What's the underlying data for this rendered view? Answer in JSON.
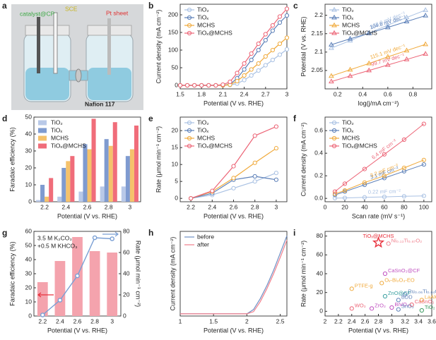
{
  "chart_data": [
    {
      "type": "image",
      "panel": "a",
      "labels": [
        "catalyst@CP",
        "SCE",
        "Pt sheet",
        "Nafion 117"
      ]
    },
    {
      "type": "line",
      "panel": "b",
      "xlabel": "Potential (V vs. RHE)",
      "ylabel": "Current density (mA cm⁻²)",
      "x": [
        1.5,
        1.6,
        1.7,
        1.8,
        1.9,
        2.0,
        2.1,
        2.2,
        2.3,
        2.4,
        2.5,
        2.6,
        2.7,
        2.8,
        2.9,
        3.0
      ],
      "xlim": [
        1.5,
        3
      ],
      "xticks": [
        1.5,
        1.8,
        2.1,
        2.4,
        2.7,
        3
      ],
      "ylim": [
        -10,
        230
      ],
      "yticks": [
        0,
        50,
        100,
        150,
        200
      ],
      "markers": true,
      "series": [
        {
          "name": "TiO₂",
          "color": "#a9c1e3",
          "values": [
            0,
            0,
            0,
            0,
            0,
            0,
            0,
            1,
            5,
            15,
            28,
            42,
            57,
            72,
            87,
            102
          ]
        },
        {
          "name": "TiOₓ",
          "color": "#5b7fb8",
          "values": [
            0,
            0,
            0,
            0,
            0,
            0,
            0,
            3,
            20,
            45,
            72,
            100,
            128,
            155,
            178,
            198
          ]
        },
        {
          "name": "MCHS",
          "color": "#f0aa3c",
          "values": [
            0,
            0,
            0,
            0,
            0,
            0,
            0,
            2,
            12,
            28,
            45,
            62,
            82,
            100,
            118,
            135
          ]
        },
        {
          "name": "TiOₓ@MCHS",
          "color": "#ec6476",
          "values": [
            0,
            0,
            0,
            0,
            0,
            0,
            2,
            10,
            35,
            62,
            90,
            118,
            145,
            170,
            195,
            217
          ]
        }
      ]
    },
    {
      "type": "scatter",
      "panel": "c",
      "xlabel": "log(j/mA cm⁻²)",
      "ylabel": "Potential (V vs. RHE)",
      "xlim": [
        0.1,
        0.95
      ],
      "xticks": [
        0.2,
        0.4,
        0.6,
        0.8
      ],
      "ylim": [
        2.0,
        2.23
      ],
      "yticks": [
        2.05,
        2.1,
        2.15,
        2.2
      ],
      "fit": true,
      "series": [
        {
          "name": "TiO₂",
          "color": "#a9c1e3",
          "marker": "triangle",
          "x": [
            0.15,
            0.3,
            0.45,
            0.6,
            0.75,
            0.9
          ],
          "values": [
            2.111,
            2.131,
            2.152,
            2.173,
            2.194,
            2.214
          ],
          "slope_label": "138.0 mV dec⁻¹"
        },
        {
          "name": "TiOₓ",
          "color": "#5b7fb8",
          "marker": "triangle",
          "x": [
            0.15,
            0.3,
            0.45,
            0.6,
            0.75,
            0.9
          ],
          "values": [
            2.12,
            2.136,
            2.151,
            2.167,
            2.183,
            2.199
          ],
          "slope_label": "104.8 mV dec⁻¹"
        },
        {
          "name": "MCHS",
          "color": "#f0aa3c",
          "marker": "triangle",
          "x": [
            0.15,
            0.3,
            0.45,
            0.6,
            0.75,
            0.9
          ],
          "values": [
            2.035,
            2.052,
            2.069,
            2.087,
            2.104,
            2.121
          ],
          "slope_label": "115.1 mV dec⁻¹"
        },
        {
          "name": "TiOₓ@MCHS",
          "color": "#ec6476",
          "marker": "triangle",
          "x": [
            0.15,
            0.3,
            0.45,
            0.6,
            0.75,
            0.9
          ],
          "values": [
            2.02,
            2.035,
            2.05,
            2.065,
            2.08,
            2.095
          ],
          "slope_label": "99.7 mV dec⁻¹"
        }
      ]
    },
    {
      "type": "bar",
      "panel": "d",
      "xlabel": "Potential (V vs. RHE)",
      "ylabel": "Faradaic efficiency (%)",
      "categories": [
        "2.2",
        "2.4",
        "2.6",
        "2.8",
        "3"
      ],
      "ylim": [
        0,
        50
      ],
      "yticks": [
        0,
        10,
        20,
        30,
        40,
        50
      ],
      "series": [
        {
          "name": "TiO₂",
          "color": "#b9c9e8",
          "values": [
            1,
            3,
            6,
            9,
            9
          ]
        },
        {
          "name": "TiOₓ",
          "color": "#7f9bd0",
          "values": [
            10,
            20,
            34,
            37,
            27
          ]
        },
        {
          "name": "MCHS",
          "color": "#f5c26b",
          "values": [
            3,
            24,
            31,
            33,
            31
          ]
        },
        {
          "name": "TiOₓ@MCHS",
          "color": "#f06d7a",
          "values": [
            14,
            27,
            49,
            47,
            45
          ]
        }
      ]
    },
    {
      "type": "line",
      "panel": "e",
      "xlabel": "Potential (V vs. RHE)",
      "ylabel": "Rate (μmol min⁻¹ cm⁻²)",
      "x": [
        2.2,
        2.4,
        2.6,
        2.8,
        3
      ],
      "xlim": [
        2.1,
        3.1
      ],
      "xticks": [
        2.2,
        2.4,
        2.6,
        2.8,
        3
      ],
      "ylim": [
        -1,
        24
      ],
      "yticks": [
        0,
        5,
        10,
        15,
        20
      ],
      "markers": true,
      "series": [
        {
          "name": "TiO₂",
          "color": "#a9c1e3",
          "values": [
            0,
            1,
            3,
            5,
            7.5
          ]
        },
        {
          "name": "TiOₓ",
          "color": "#5b7fb8",
          "values": [
            0,
            1.5,
            5.5,
            6.5,
            5.5
          ]
        },
        {
          "name": "MCHS",
          "color": "#f0aa3c",
          "values": [
            0,
            2,
            6,
            10.5,
            14.8
          ]
        },
        {
          "name": "TiOₓ@MCHS",
          "color": "#ec6476",
          "values": [
            0,
            2.2,
            9.5,
            18.5,
            21.2
          ]
        }
      ]
    },
    {
      "type": "scatter",
      "panel": "f",
      "xlabel": "Scan rate (mV s⁻¹)",
      "ylabel": "Current density (mA cm⁻²)",
      "xlim": [
        0,
        108
      ],
      "xticks": [
        0,
        20,
        40,
        60,
        80,
        100
      ],
      "ylim": [
        -0.03,
        0.72
      ],
      "yticks": [
        {
          "value": 0,
          "label": "0.0"
        },
        0.2,
        0.4,
        0.6
      ],
      "fit": true,
      "series": [
        {
          "name": "TiO₂",
          "color": "#a9c1e3",
          "marker": "circle",
          "x": [
            10,
            20,
            40,
            60,
            80,
            100
          ],
          "values": [
            0.002,
            0.004,
            0.009,
            0.013,
            0.018,
            0.022
          ],
          "slope_label": "0.22 mF cm⁻²"
        },
        {
          "name": "TiOₓ",
          "color": "#5b7fb8",
          "marker": "circle",
          "x": [
            10,
            20,
            40,
            60,
            80,
            100
          ],
          "values": [
            0.03,
            0.06,
            0.12,
            0.18,
            0.24,
            0.3
          ],
          "slope_label": "3.1 mF cm⁻²"
        },
        {
          "name": "MCHS",
          "color": "#f0aa3c",
          "marker": "circle",
          "x": [
            10,
            20,
            40,
            60,
            80,
            100
          ],
          "values": [
            0.04,
            0.07,
            0.14,
            0.2,
            0.27,
            0.34
          ],
          "slope_label": "3.2 mF cm⁻²"
        },
        {
          "name": "TiOₓ@MCHS",
          "color": "#ec6476",
          "marker": "circle",
          "x": [
            10,
            20,
            40,
            60,
            80,
            100
          ],
          "values": [
            0.06,
            0.13,
            0.26,
            0.39,
            0.52,
            0.66
          ],
          "slope_label": "6.4 mF cm⁻²"
        }
      ]
    },
    {
      "type": "bar_line",
      "panel": "g",
      "xlabel": "Potential (V vs. RHE)",
      "ylabel": "Faradaic efficiency (%)",
      "y2label": "Rate (μmol min⁻¹ cm⁻²)",
      "categories": [
        "2.2",
        "2.4",
        "2.6",
        "2.8",
        "3"
      ],
      "ylim": [
        0,
        60
      ],
      "yticks": [
        0,
        10,
        20,
        30,
        40,
        50,
        60
      ],
      "y2lim": [
        0,
        80
      ],
      "y2ticks": [
        0,
        20,
        40,
        60,
        80
      ],
      "notes": [
        "3.5 M K₂CO₃",
        "+0.5 M KHCO₃"
      ],
      "series": [
        {
          "color": "#f4a3ad",
          "values": [
            24,
            39,
            56,
            46,
            45
          ]
        },
        {
          "color": "#7a9fd4",
          "values": [
            1,
            15,
            38,
            74,
            73
          ],
          "axis": "y2"
        }
      ]
    },
    {
      "type": "line",
      "panel": "h",
      "xlabel": "Potential (V vs. RHE)",
      "ylabel": "Current density (mA cm⁻²)",
      "x": [
        1,
        1.5,
        2,
        2.1,
        2.2,
        2.3,
        2.4,
        2.5,
        2.6
      ],
      "xlim": [
        1,
        2.6
      ],
      "xticks": [
        1,
        1.5,
        2,
        2.5
      ],
      "ylim": [
        -5,
        190
      ],
      "markers": false,
      "series": [
        {
          "name": "before",
          "color": "#6e8fc4",
          "values": [
            0,
            0,
            0,
            10,
            35,
            65,
            100,
            140,
            180
          ]
        },
        {
          "name": "after",
          "color": "#f07f8c",
          "values": [
            0,
            0,
            0,
            5,
            28,
            58,
            92,
            130,
            170
          ]
        }
      ]
    },
    {
      "type": "scatter",
      "panel": "i",
      "xlabel": "Potential (V vs. RHE)",
      "ylabel": "Rate (μmol min⁻¹ cm⁻²)",
      "xlim": [
        2.0,
        3.6
      ],
      "xticks": [
        2,
        2.2,
        2.4,
        2.6,
        2.8,
        3,
        3.2,
        3.4,
        3.6
      ],
      "ylim": [
        -5,
        85
      ],
      "yticks": [
        0,
        20,
        40,
        60,
        80
      ],
      "point_labels": true,
      "series": [
        {
          "name": "TiOₓ@MCHS",
          "color": "#e8303c",
          "marker": "star",
          "x": [
            2.8
          ],
          "values": [
            73
          ]
        },
        {
          "name": "Ni₀.₁₃Ti₀.₈₇O₂",
          "color": "#f07f8c",
          "marker": "circle",
          "x": [
            2.95
          ],
          "values": [
            72
          ]
        },
        {
          "name": "CaSnO₃@CF",
          "color": "#c050c0",
          "marker": "circle",
          "x": [
            2.9
          ],
          "values": [
            40
          ]
        },
        {
          "name": "Oᵥ-Bi₂O₃-EO",
          "color": "#f0aa3c",
          "marker": "circle",
          "x": [
            2.85
          ],
          "values": [
            30
          ]
        },
        {
          "name": "PTFE-g",
          "color": "#f0aa3c",
          "marker": "circle",
          "x": [
            2.4
          ],
          "values": [
            24
          ]
        },
        {
          "name": "Ru₀.₀₆Ti₀.₉₄O₂",
          "color": "#5b7fb8",
          "marker": "circle",
          "x": [
            3.2
          ],
          "values": [
            18
          ]
        },
        {
          "name": "ZnO@CF",
          "color": "#3aa0a0",
          "marker": "circle",
          "x": [
            2.9
          ],
          "values": [
            16
          ]
        },
        {
          "name": "BDD",
          "color": "#5b7fb8",
          "marker": "circle",
          "x": [
            3.1
          ],
          "values": [
            12
          ]
        },
        {
          "name": "LaAlO₃",
          "color": "#f0aa3c",
          "marker": "circle",
          "x": [
            3.45
          ],
          "values": [
            12
          ]
        },
        {
          "name": "CaSnO₃",
          "color": "#ec6476",
          "marker": "circle",
          "x": [
            3.3
          ],
          "values": [
            7
          ]
        },
        {
          "name": "BiVO₄",
          "color": "#c050c0",
          "marker": "circle",
          "x": [
            3.0
          ],
          "values": [
            4
          ]
        },
        {
          "name": "SnO₂",
          "color": "#5b7fb8",
          "marker": "circle",
          "x": [
            3.1
          ],
          "values": [
            2
          ]
        },
        {
          "name": "TiO₂",
          "color": "#3a9a60",
          "marker": "circle",
          "x": [
            3.45
          ],
          "values": [
            1
          ]
        },
        {
          "name": "WO₃",
          "color": "#ec6476",
          "marker": "circle",
          "x": [
            2.4
          ],
          "values": [
            3
          ]
        },
        {
          "name": "ZrO₂",
          "color": "#c050c0",
          "marker": "circle",
          "x": [
            2.7
          ],
          "values": [
            3
          ]
        }
      ]
    }
  ]
}
